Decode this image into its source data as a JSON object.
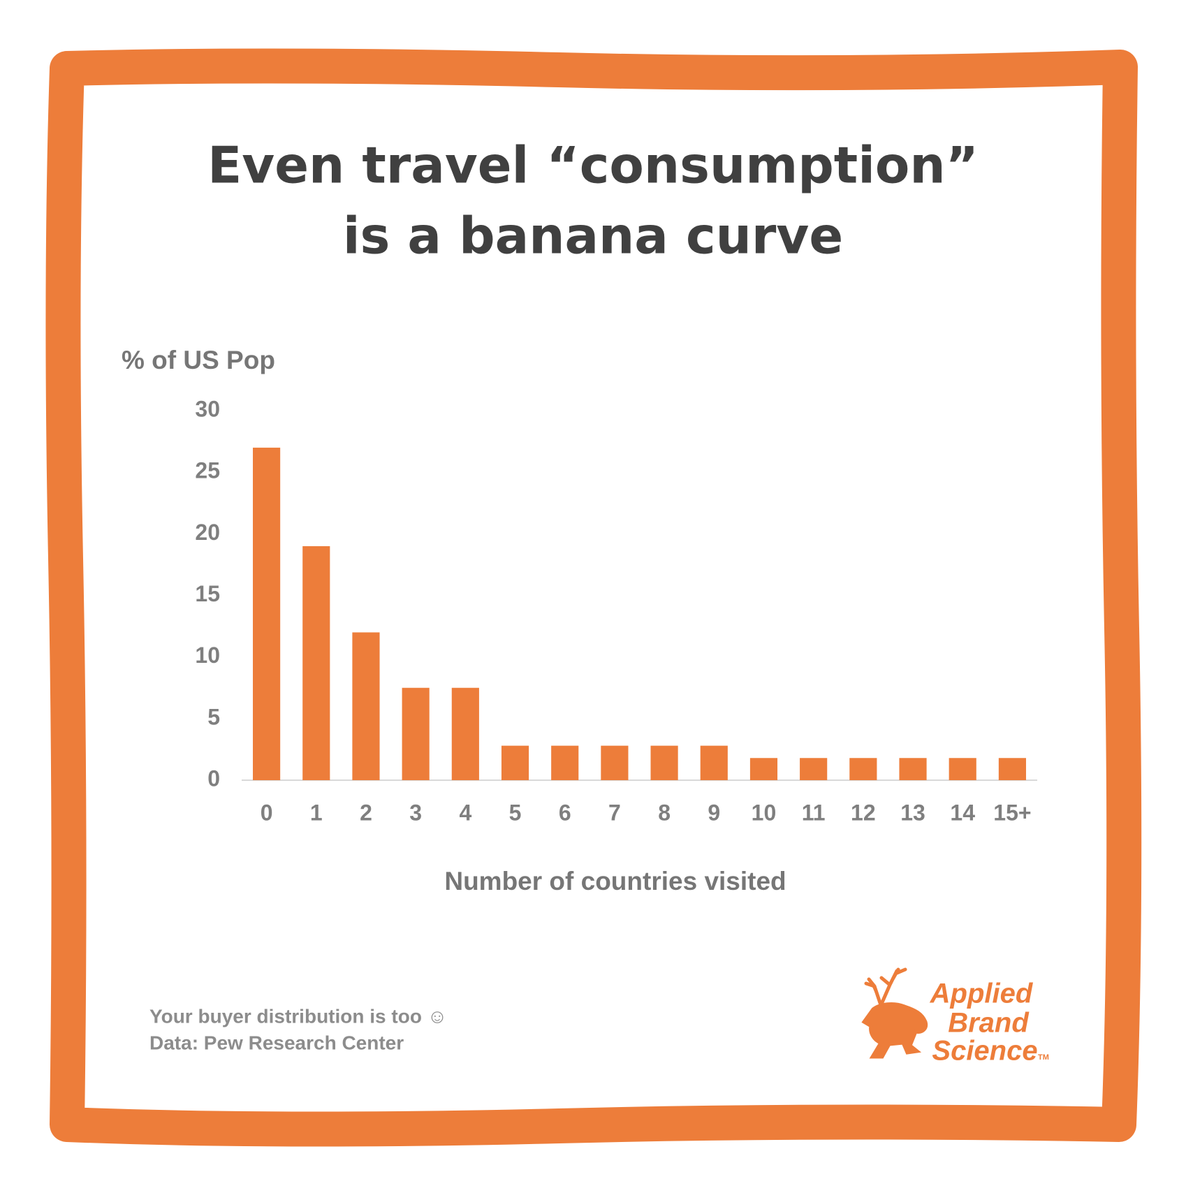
{
  "chart_data": {
    "type": "bar",
    "title": [
      "Even travel “consumption”",
      "is a banana curve"
    ],
    "y_label": "% of US Pop",
    "x_label": "Number of countries visited",
    "categories": [
      "0",
      "1",
      "2",
      "3",
      "4",
      "5",
      "6",
      "7",
      "8",
      "9",
      "10",
      "11",
      "12",
      "13",
      "14",
      "15+"
    ],
    "values": [
      27,
      19,
      12,
      7.5,
      7.5,
      2.8,
      2.8,
      2.8,
      2.8,
      2.8,
      1.8,
      1.8,
      1.8,
      1.8,
      1.8,
      1.8
    ],
    "color": "#ed7d3a",
    "ylim": [
      0,
      30
    ],
    "yticks": [
      0,
      5,
      10,
      15,
      20,
      25,
      30
    ],
    "grid": false
  },
  "footer": [
    "Your buyer distribution is too ☺",
    "Data: Pew Research Center"
  ],
  "logo": {
    "lines": [
      "Applied",
      "Brand",
      "Science"
    ],
    "mark": "TM"
  }
}
